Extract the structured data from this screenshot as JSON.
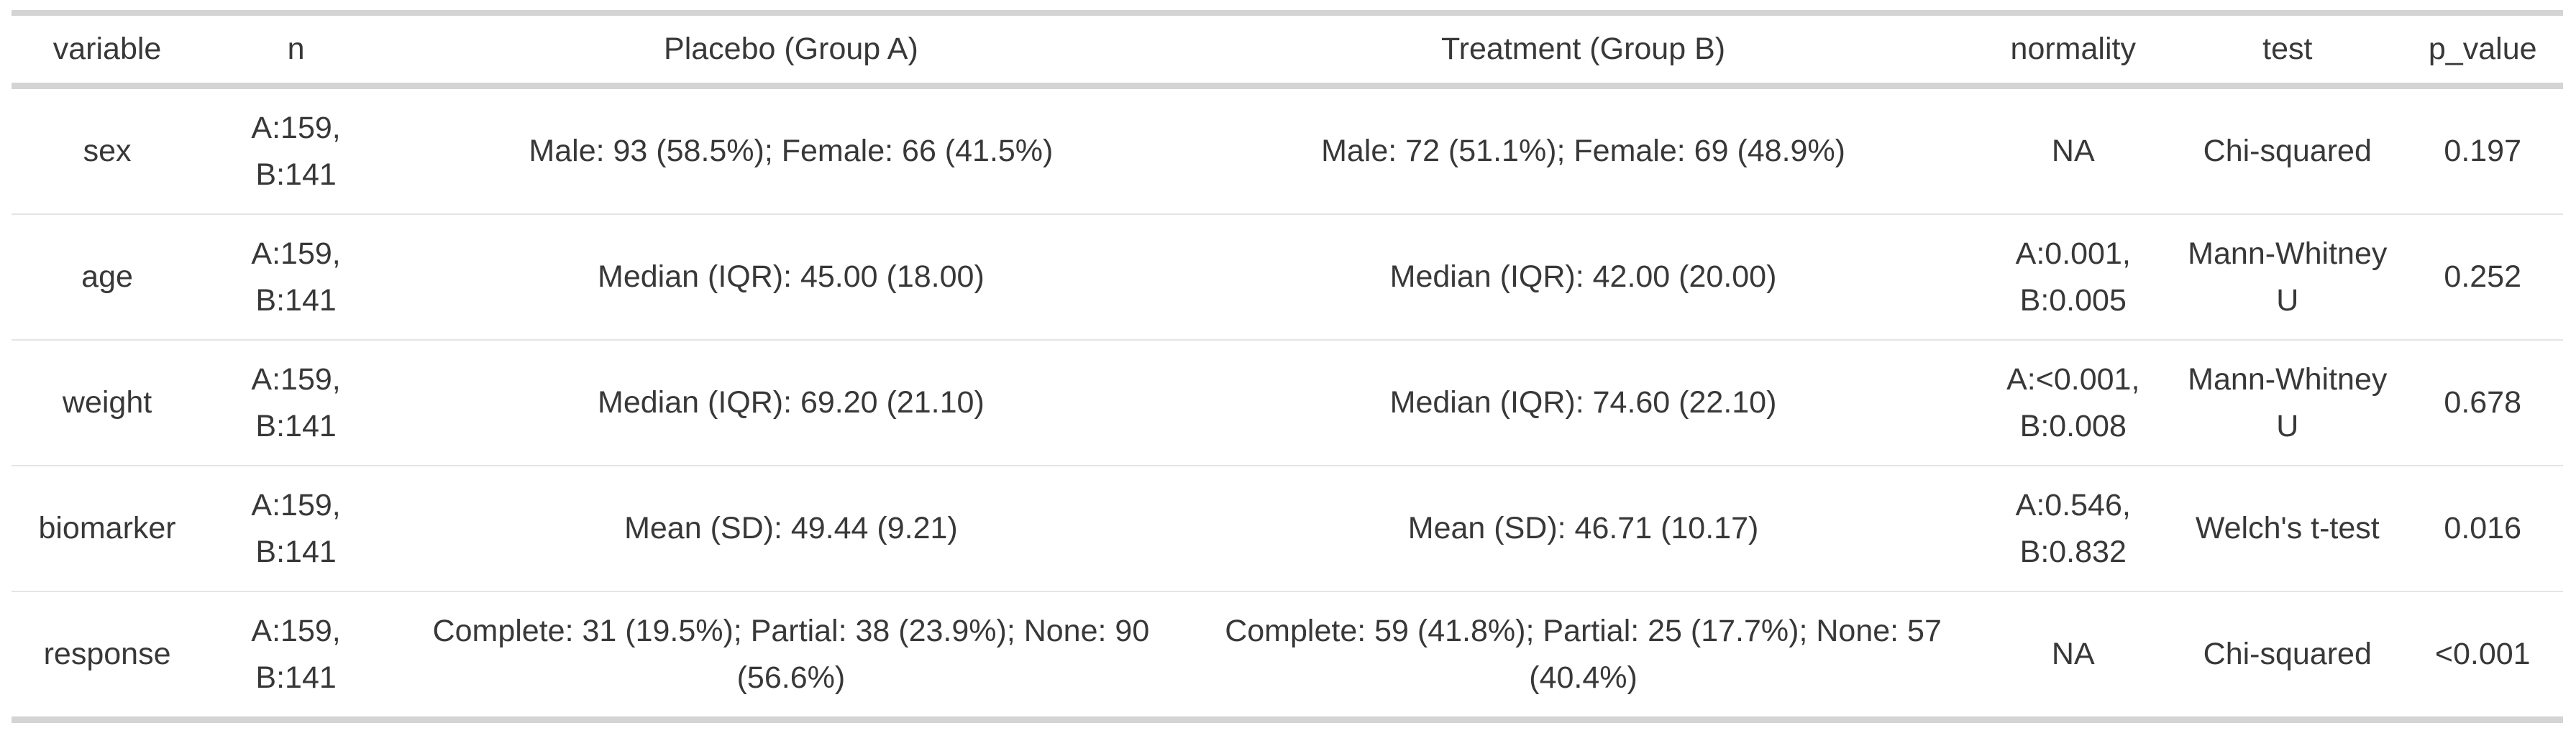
{
  "table": {
    "columns": [
      {
        "key": "variable",
        "label": "variable"
      },
      {
        "key": "n",
        "label": "n"
      },
      {
        "key": "placebo",
        "label": "Placebo (Group A)"
      },
      {
        "key": "treatment",
        "label": "Treatment (Group B)"
      },
      {
        "key": "normality",
        "label": "normality"
      },
      {
        "key": "test",
        "label": "test"
      },
      {
        "key": "p_value",
        "label": "p_value"
      }
    ],
    "rows": [
      {
        "variable": "sex",
        "n": "A:159,\nB:141",
        "placebo": "Male: 93 (58.5%); Female: 66 (41.5%)",
        "treatment": "Male: 72 (51.1%); Female: 69 (48.9%)",
        "normality": "NA",
        "test": "Chi-squared",
        "p_value": "0.197"
      },
      {
        "variable": "age",
        "n": "A:159,\nB:141",
        "placebo": "Median (IQR): 45.00 (18.00)",
        "treatment": "Median (IQR): 42.00 (20.00)",
        "normality": "A:0.001,\nB:0.005",
        "test": "Mann-Whitney\nU",
        "p_value": "0.252"
      },
      {
        "variable": "weight",
        "n": "A:159,\nB:141",
        "placebo": "Median (IQR): 69.20 (21.10)",
        "treatment": "Median (IQR): 74.60 (22.10)",
        "normality": "A:<0.001,\nB:0.008",
        "test": "Mann-Whitney\nU",
        "p_value": "0.678"
      },
      {
        "variable": "biomarker",
        "n": "A:159,\nB:141",
        "placebo": "Mean (SD): 49.44 (9.21)",
        "treatment": "Mean (SD): 46.71 (10.17)",
        "normality": "A:0.546,\nB:0.832",
        "test": "Welch's t-test",
        "p_value": "0.016"
      },
      {
        "variable": "response",
        "n": "A:159,\nB:141",
        "placebo": "Complete: 31 (19.5%); Partial: 38 (23.9%); None: 90\n(56.6%)",
        "treatment": "Complete: 59 (41.8%); Partial: 25 (17.7%); None: 57\n(40.4%)",
        "normality": "NA",
        "test": "Chi-squared",
        "p_value": "<0.001"
      }
    ]
  },
  "chart_data": {
    "type": "table",
    "title": "Group comparison summary table",
    "columns": [
      "variable",
      "n",
      "Placebo (Group A)",
      "Treatment (Group B)",
      "normality",
      "test",
      "p_value"
    ],
    "rows": [
      [
        "sex",
        "A:159, B:141",
        "Male: 93 (58.5%); Female: 66 (41.5%)",
        "Male: 72 (51.1%); Female: 69 (48.9%)",
        "NA",
        "Chi-squared",
        "0.197"
      ],
      [
        "age",
        "A:159, B:141",
        "Median (IQR): 45.00 (18.00)",
        "Median (IQR): 42.00 (20.00)",
        "A:0.001, B:0.005",
        "Mann-Whitney U",
        "0.252"
      ],
      [
        "weight",
        "A:159, B:141",
        "Median (IQR): 69.20 (21.10)",
        "Median (IQR): 74.60 (22.10)",
        "A:<0.001, B:0.008",
        "Mann-Whitney U",
        "0.678"
      ],
      [
        "biomarker",
        "A:159, B:141",
        "Mean (SD): 49.44 (9.21)",
        "Mean (SD): 46.71 (10.17)",
        "A:0.546, B:0.832",
        "Welch's t-test",
        "0.016"
      ],
      [
        "response",
        "A:159, B:141",
        "Complete: 31 (19.5%); Partial: 38 (23.9%); None: 90 (56.6%)",
        "Complete: 59 (41.8%); Partial: 25 (17.7%); None: 57 (40.4%)",
        "NA",
        "Chi-squared",
        "<0.001"
      ]
    ]
  },
  "colors": {
    "rule_heavy": "#d4d4d4",
    "rule_light": "#e5e5e5",
    "text": "#383838",
    "background": "#ffffff"
  }
}
